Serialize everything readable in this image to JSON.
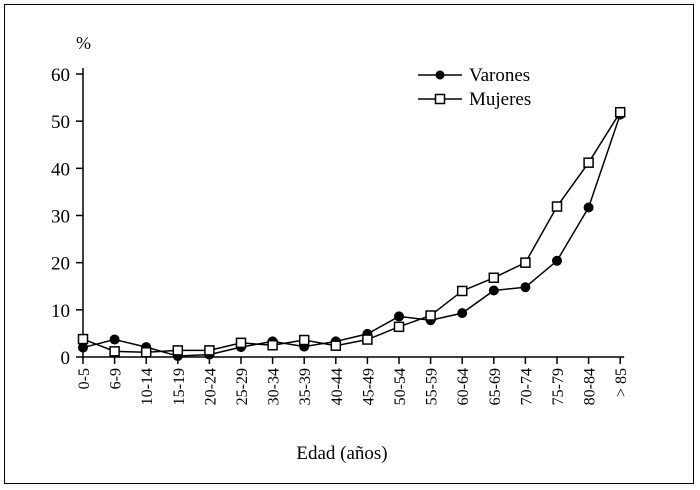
{
  "chart_data": {
    "type": "line",
    "xlabel": "Edad (años)",
    "ylabel": "%",
    "ylim": [
      0,
      60
    ],
    "yticks": [
      0,
      10,
      20,
      30,
      40,
      50,
      60
    ],
    "categories": [
      "0-5",
      "6-9",
      "10-14",
      "15-19",
      "20-24",
      "25-29",
      "30-34",
      "35-39",
      "40-44",
      "45-49",
      "50-54",
      "55-59",
      "60-64",
      "65-69",
      "70-74",
      "75-79",
      "80-84",
      "> 85"
    ],
    "legend_position": "top-right",
    "series": [
      {
        "name": "Varones",
        "marker": "filled-circle",
        "values": [
          2,
          3.7,
          2.1,
          0.2,
          0.5,
          2.1,
          3.3,
          2.2,
          3.3,
          4.9,
          8.6,
          7.8,
          9.3,
          14.1,
          14.8,
          20.4,
          31.7,
          51.4
        ]
      },
      {
        "name": "Mujeres",
        "marker": "open-square",
        "values": [
          3.8,
          1.2,
          1.0,
          1.4,
          1.4,
          3.0,
          2.5,
          3.6,
          2.4,
          3.7,
          6.4,
          8.8,
          14.0,
          16.8,
          20.0,
          31.9,
          41.2,
          51.9
        ]
      }
    ]
  }
}
